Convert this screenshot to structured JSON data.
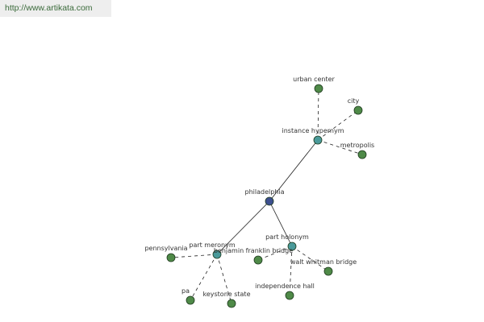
{
  "header": {
    "url": "http://www.artikata.com"
  },
  "nodes": [
    {
      "label": "philadelphia"
    },
    {
      "label": "instance hypernym"
    },
    {
      "label": "urban center"
    },
    {
      "label": "city"
    },
    {
      "label": "metropolis"
    },
    {
      "label": "part meronym"
    },
    {
      "label": "pennsylvania"
    },
    {
      "label": "pa"
    },
    {
      "label": "keystone state"
    },
    {
      "label": "part holonym"
    },
    {
      "label": "benjamin franklin bridge"
    },
    {
      "label": "walt whitman bridge"
    },
    {
      "label": "independence hall"
    }
  ]
}
